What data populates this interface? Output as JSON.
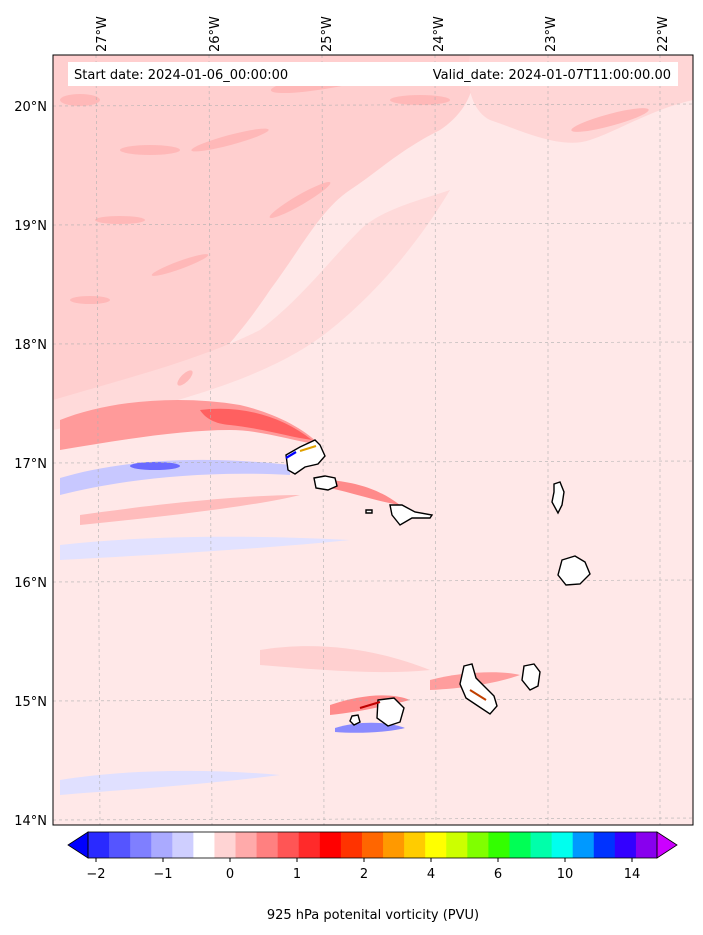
{
  "map": {
    "start_date": "Start date: 2024-01-06_00:00:00",
    "valid_date": "Valid_date: 2024-01-07T11:00:00.00",
    "lon_ticks": [
      "27°W",
      "26°W",
      "25°W",
      "24°W",
      "23°W",
      "22°W"
    ],
    "lat_ticks": [
      "20°N",
      "19°N",
      "18°N",
      "17°N",
      "16°N",
      "15°N",
      "14°N"
    ]
  },
  "colorbar": {
    "label": "925 hPa potenital vorticity (PVU)",
    "tick_labels": [
      "−2",
      "−1",
      "0",
      "1",
      "2",
      "4",
      "6",
      "10",
      "14"
    ],
    "colors": [
      "#0000ff",
      "#2a2aff",
      "#5555ff",
      "#7f7fff",
      "#aaaaff",
      "#cfcfff",
      "#ffffff",
      "#ffd4d4",
      "#ffaaaa",
      "#ff8080",
      "#ff5555",
      "#ff2a2a",
      "#ff0000",
      "#ff3300",
      "#ff6600",
      "#ff9900",
      "#ffcc00",
      "#ffff00",
      "#ccff00",
      "#80ff00",
      "#33ff00",
      "#00ff55",
      "#00ffaa",
      "#00ffee",
      "#0099ff",
      "#0033ff",
      "#3300ff",
      "#8800ee",
      "#cc00ff"
    ]
  }
}
